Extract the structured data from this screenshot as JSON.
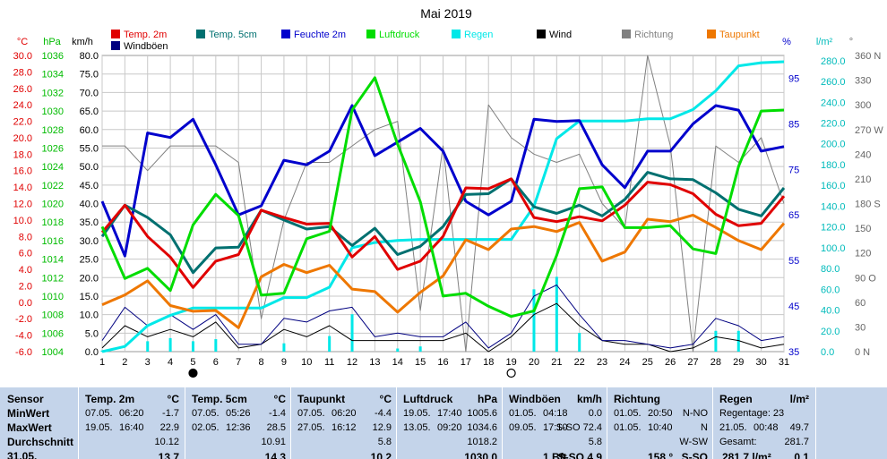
{
  "chart_data": {
    "type": "line",
    "title": "Mai 2019",
    "x": [
      1,
      2,
      3,
      4,
      5,
      6,
      7,
      8,
      9,
      10,
      11,
      12,
      13,
      14,
      15,
      16,
      17,
      18,
      19,
      20,
      21,
      22,
      23,
      24,
      25,
      26,
      27,
      28,
      29,
      30,
      31
    ],
    "x_ticks": [
      "1",
      "2",
      "3",
      "4",
      "5",
      "6",
      "7",
      "8",
      "9",
      "10",
      "11",
      "12",
      "13",
      "14",
      "15",
      "16",
      "17",
      "18",
      "19",
      "20",
      "21",
      "22",
      "23",
      "24",
      "25",
      "26",
      "27",
      "28",
      "29",
      "30",
      "31"
    ],
    "left_axes": {
      "temp": {
        "unit": "°C",
        "min": -6,
        "max": 30,
        "ticks": [
          "30.0",
          "28.0",
          "26.0",
          "24.0",
          "22.0",
          "20.0",
          "18.0",
          "16.0",
          "14.0",
          "12.0",
          "10.0",
          "8.0",
          "6.0",
          "4.0",
          "2.0",
          "0.0",
          "-2.0",
          "-4.0",
          "-6.0"
        ]
      },
      "pressure": {
        "unit": "hPa",
        "min": 1004,
        "max": 1036,
        "ticks": [
          "1036",
          "1034",
          "1032",
          "1030",
          "1028",
          "1026",
          "1024",
          "1022",
          "1020",
          "1018",
          "1016",
          "1014",
          "1012",
          "1010",
          "1008",
          "1006",
          "1004"
        ]
      },
      "wind": {
        "unit": "km/h",
        "min": 0,
        "max": 80,
        "ticks": [
          "80.0",
          "75.0",
          "70.0",
          "65.0",
          "60.0",
          "55.0",
          "50.0",
          "45.0",
          "40.0",
          "35.0",
          "30.0",
          "25.0",
          "20.0",
          "15.0",
          "10.0",
          "5.0",
          "0.0"
        ]
      }
    },
    "right_axes": {
      "humidity": {
        "unit": "%",
        "min": 35,
        "max": 100,
        "ticks": [
          "95",
          "85",
          "75",
          "65",
          "55",
          "45",
          "35"
        ]
      },
      "rain": {
        "unit": "l/m²",
        "min": 0,
        "max": 285,
        "ticks": [
          "280.0",
          "260.0",
          "240.0",
          "220.0",
          "200.0",
          "180.0",
          "160.0",
          "140.0",
          "120.0",
          "100.0",
          "80.0",
          "60.0",
          "40.0",
          "20.0",
          "0.0"
        ]
      },
      "direction": {
        "unit": "°",
        "min": 0,
        "max": 360,
        "ticks": [
          "360 N",
          "330",
          "300",
          "270 W",
          "240",
          "210",
          "180 S",
          "150",
          "120",
          "90 O",
          "60",
          "30",
          "0 N"
        ]
      }
    },
    "legend": [
      {
        "label": "Temp. 2m",
        "color": "#e00000"
      },
      {
        "label": "Temp. 5cm",
        "color": "#007070"
      },
      {
        "label": "Feuchte 2m",
        "color": "#0000cc"
      },
      {
        "label": "Luftdruck",
        "color": "#00dd00"
      },
      {
        "label": "Regen",
        "color": "#00e8e8"
      },
      {
        "label": "Wind",
        "color": "#000000"
      },
      {
        "label": "Richtung",
        "color": "#808080"
      },
      {
        "label": "Taupunkt",
        "color": "#ee7700"
      },
      {
        "label": "Windböen",
        "color": "#000080"
      }
    ],
    "series": [
      {
        "name": "Temp. 2m",
        "axis": "temp",
        "color": "#e00000",
        "values": [
          8.5,
          11.8,
          8.0,
          5.5,
          1.8,
          5.0,
          5.8,
          11.2,
          10.3,
          9.5,
          9.6,
          5.5,
          8.0,
          4.0,
          5.0,
          8.0,
          13.9,
          13.8,
          15.0,
          10.3,
          9.8,
          10.4,
          9.9,
          11.8,
          14.6,
          14.3,
          13.2,
          10.7,
          9.3,
          9.6,
          12.9
        ]
      },
      {
        "name": "Temp. 5cm",
        "axis": "temp",
        "color": "#007070",
        "values": [
          8.0,
          11.8,
          10.3,
          8.2,
          3.6,
          6.6,
          6.7,
          11.2,
          10.0,
          8.9,
          9.2,
          6.9,
          9.0,
          5.8,
          6.8,
          9.2,
          13.1,
          13.2,
          15.0,
          11.6,
          10.8,
          11.8,
          10.5,
          12.5,
          15.8,
          15.0,
          14.9,
          13.3,
          11.3,
          10.5,
          13.9
        ]
      },
      {
        "name": "Taupunkt",
        "axis": "temp",
        "color": "#ee7700",
        "values": [
          -0.3,
          0.9,
          2.6,
          -0.4,
          -1.1,
          -1.0,
          -3.1,
          3.1,
          4.6,
          3.6,
          4.5,
          1.6,
          1.3,
          -1.2,
          1.2,
          3.2,
          7.6,
          6.4,
          8.9,
          9.2,
          8.6,
          9.7,
          5.0,
          6.1,
          10.1,
          9.8,
          10.6,
          9.1,
          7.5,
          6.4,
          9.6
        ]
      },
      {
        "name": "Luftdruck",
        "axis": "pressure",
        "color": "#00dd00",
        "values": [
          1017.5,
          1011.9,
          1013.0,
          1010.6,
          1017.7,
          1021.0,
          1018.7,
          1010.1,
          1010.3,
          1016.2,
          1017.0,
          1030.1,
          1033.6,
          1026.4,
          1020.2,
          1010.0,
          1010.3,
          1008.9,
          1007.8,
          1008.4,
          1014.4,
          1021.6,
          1021.8,
          1017.4,
          1017.4,
          1017.6,
          1015.1,
          1014.6,
          1024.0,
          1030.0,
          1030.1
        ]
      },
      {
        "name": "Feuchte 2m",
        "axis": "humidity",
        "color": "#0000cc",
        "values": [
          68,
          56,
          83,
          82,
          86,
          76,
          65,
          67,
          77,
          76,
          79,
          89,
          78,
          81,
          84,
          79,
          68,
          65,
          68,
          86,
          85.5,
          85.7,
          76,
          71,
          79,
          79,
          85,
          89,
          88,
          79,
          80
        ]
      },
      {
        "name": "Regen",
        "axis": "rain",
        "color": "#00e8e8",
        "values": [
          0,
          5,
          25,
          35,
          42,
          42,
          42,
          42,
          52,
          52,
          62,
          100,
          105,
          107,
          108,
          108,
          108,
          108,
          108,
          140,
          205,
          222,
          222,
          222,
          224,
          224,
          233,
          251,
          275,
          278,
          279
        ]
      },
      {
        "name": "Wind",
        "axis": "wind",
        "color": "#000000",
        "values": [
          1,
          7,
          4,
          6,
          4,
          8,
          1,
          2,
          6,
          4,
          7,
          3,
          3,
          3,
          3,
          3,
          5,
          0,
          4,
          10,
          13,
          7,
          3,
          2,
          2,
          0,
          1,
          4,
          3,
          1,
          2
        ]
      },
      {
        "name": "Windböen",
        "axis": "wind",
        "color": "#000080",
        "values": [
          3,
          12,
          7,
          10,
          6,
          10,
          2,
          2,
          9,
          8,
          11,
          12,
          4,
          5,
          4,
          4,
          8,
          1,
          5,
          15,
          18,
          10,
          3,
          3,
          2,
          1,
          2,
          9,
          7,
          3,
          4
        ]
      },
      {
        "name": "Richtung",
        "axis": "direction",
        "color": "#808080",
        "values": [
          250,
          250,
          220,
          250,
          250,
          250,
          230,
          40,
          160,
          230,
          230,
          250,
          270,
          280,
          50,
          250,
          0,
          300,
          260,
          240,
          230,
          240,
          180,
          150,
          360,
          250,
          0,
          250,
          230,
          260,
          180
        ]
      }
    ],
    "rain_bars": {
      "axis": "rain",
      "values": [
        1,
        0,
        10,
        13,
        10,
        12,
        0,
        0,
        8,
        0,
        15,
        36,
        0,
        3,
        5,
        0,
        0,
        0,
        0,
        60,
        72,
        18,
        0,
        0,
        0,
        0,
        0,
        20,
        20,
        0,
        0
      ]
    },
    "moon_markers": [
      {
        "day": 5,
        "phase": "new"
      },
      {
        "day": 19,
        "phase": "full"
      }
    ],
    "grid": true
  },
  "stats": {
    "row_labels": [
      "Sensor",
      "MinWert",
      "MaxWert",
      "Durchschnitt",
      "31.05."
    ],
    "columns": [
      {
        "header": "Temp. 2m",
        "unit": "°C",
        "rows": [
          [
            "07.05.",
            "06:20",
            "-1.7"
          ],
          [
            "19.05.",
            "16:40",
            "22.9"
          ],
          [
            "",
            "",
            "10.12"
          ],
          [
            "",
            "",
            "13.7"
          ]
        ]
      },
      {
        "header": "Temp. 5cm",
        "unit": "°C",
        "rows": [
          [
            "07.05.",
            "05:26",
            "-1.4"
          ],
          [
            "02.05.",
            "12:36",
            "28.5"
          ],
          [
            "",
            "",
            "10.91"
          ],
          [
            "",
            "",
            "14.3"
          ]
        ]
      },
      {
        "header": "Taupunkt",
        "unit": "°C",
        "rows": [
          [
            "07.05.",
            "06:20",
            "-4.4"
          ],
          [
            "27.05.",
            "16:12",
            "12.9"
          ],
          [
            "",
            "",
            "5.8"
          ],
          [
            "",
            "",
            "10.2"
          ]
        ]
      },
      {
        "header": "Luftdruck",
        "unit": "hPa",
        "rows": [
          [
            "19.05.",
            "17:40",
            "1005.6"
          ],
          [
            "13.05.",
            "09:20",
            "1034.6"
          ],
          [
            "",
            "",
            "1018.2"
          ],
          [
            "",
            "",
            "1030.0"
          ]
        ]
      },
      {
        "header": "Windböen",
        "unit": "km/h",
        "rows": [
          [
            "01.05.",
            "04:18",
            "0.0"
          ],
          [
            "09.05.",
            "17:10",
            "S-SO 72.4"
          ],
          [
            "",
            "",
            "5.8"
          ],
          [
            "",
            "1 Bft",
            "S-SO 4.9"
          ]
        ]
      },
      {
        "header": "Richtung",
        "unit": "",
        "rows": [
          [
            "01.05.",
            "20:50",
            "N-NO"
          ],
          [
            "01.05.",
            "10:40",
            "N"
          ],
          [
            "",
            "",
            "W-SW"
          ],
          [
            "",
            "158 °",
            "S-SO"
          ]
        ]
      },
      {
        "header": "Regen",
        "unit": "l/m²",
        "rows": [
          [
            "Regentage: 23",
            "",
            ""
          ],
          [
            "21.05.",
            "00:48",
            "49.7"
          ],
          [
            "Gesamt:",
            "",
            "281.7"
          ],
          [
            "",
            "281.7 l/m²",
            "0.1"
          ]
        ]
      }
    ]
  }
}
